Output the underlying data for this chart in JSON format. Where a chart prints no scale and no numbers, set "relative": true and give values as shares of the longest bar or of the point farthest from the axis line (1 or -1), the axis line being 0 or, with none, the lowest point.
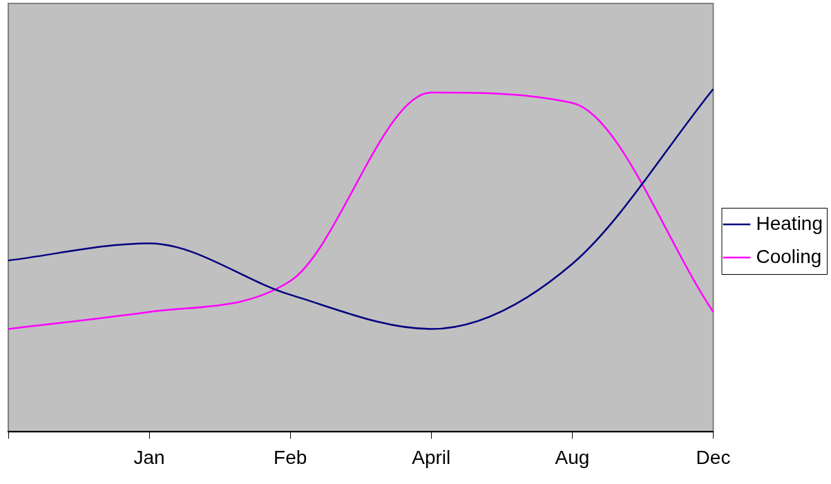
{
  "chart_data": {
    "type": "line",
    "relative": true,
    "categories": [
      null,
      "Jan",
      "Feb",
      "April",
      "Aug",
      "Dec"
    ],
    "series": [
      {
        "name": "Heating",
        "color": "#000080",
        "values": [
          0.5,
          0.55,
          0.4,
          0.3,
          0.49,
          1
        ]
      },
      {
        "name": "Cooling",
        "color": "#ff00ff",
        "values": [
          0.3,
          0.35,
          0.44,
          0.99,
          0.96,
          0.35
        ]
      }
    ],
    "legend": "right",
    "grid": false,
    "marker": "none",
    "line_style": "solid"
  }
}
